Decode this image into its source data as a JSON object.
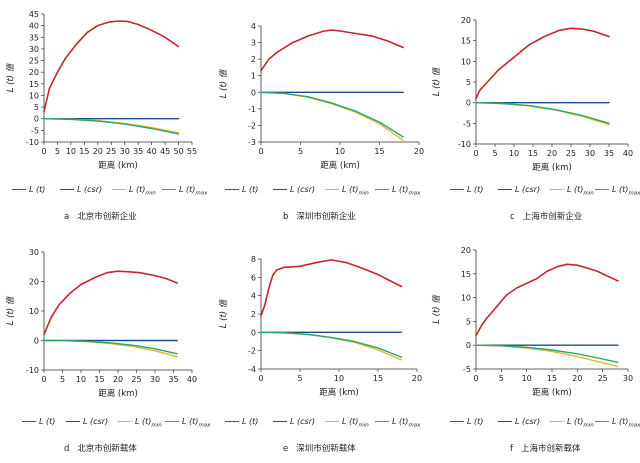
{
  "series_styles": {
    "lt": {
      "color": "#c0282d",
      "label_main": "L (t)",
      "label_sub": ""
    },
    "csr": {
      "color": "#1f4e8c",
      "label_main": "L (csr)",
      "label_sub": ""
    },
    "lmin": {
      "color": "#e8b530",
      "label_main": "L (t)",
      "label_sub": "min"
    },
    "lmax": {
      "color": "#28a86b",
      "label_main": "L (t)",
      "label_sub": "max"
    }
  },
  "chart_data": [
    {
      "type": "line",
      "letter": "a",
      "title": "北京市创新企业",
      "xlabel": "距离  (km)",
      "ylabel": "L (t)  值",
      "xlim": [
        0,
        55
      ],
      "ylim": [
        -10,
        45
      ],
      "xticks": [
        0,
        5,
        10,
        15,
        20,
        25,
        30,
        35,
        40,
        45,
        50,
        55
      ],
      "yticks": [
        -10,
        -5,
        0,
        5,
        10,
        15,
        20,
        25,
        30,
        35,
        40,
        45
      ],
      "series": [
        {
          "key": "lt",
          "x": [
            0,
            2,
            5,
            8,
            12,
            16,
            20,
            24,
            28,
            31,
            35,
            40,
            45,
            50
          ],
          "values": [
            3,
            13,
            20,
            26,
            32,
            37,
            40,
            41.5,
            42,
            41.8,
            40.5,
            38,
            35,
            31
          ]
        },
        {
          "key": "csr",
          "x": [
            0,
            50
          ],
          "values": [
            0,
            0
          ]
        },
        {
          "key": "lmin",
          "x": [
            0,
            10,
            20,
            30,
            40,
            50
          ],
          "values": [
            0,
            -0.2,
            -0.8,
            -2,
            -3.8,
            -6
          ]
        },
        {
          "key": "lmax",
          "x": [
            0,
            10,
            20,
            30,
            40,
            50
          ],
          "values": [
            0,
            -0.3,
            -1,
            -2.3,
            -4.2,
            -6.5
          ]
        }
      ]
    },
    {
      "type": "line",
      "letter": "b",
      "title": "深圳市创新企业",
      "xlabel": "距离  (km)",
      "ylabel": "L (t)  值",
      "xlim": [
        0,
        20
      ],
      "ylim": [
        -3,
        4
      ],
      "xticks": [
        0,
        5,
        10,
        15,
        20
      ],
      "yticks": [
        -3,
        -2,
        -1,
        0,
        1,
        2,
        3,
        4
      ],
      "series": [
        {
          "key": "lt",
          "x": [
            0,
            1,
            2,
            4,
            6,
            8,
            9,
            10,
            12,
            14,
            16,
            18
          ],
          "values": [
            1.3,
            2.0,
            2.4,
            3.0,
            3.4,
            3.7,
            3.75,
            3.7,
            3.55,
            3.4,
            3.1,
            2.7
          ]
        },
        {
          "key": "csr",
          "x": [
            0,
            18
          ],
          "values": [
            0,
            0
          ]
        },
        {
          "key": "lmin",
          "x": [
            0,
            3,
            6,
            9,
            12,
            15,
            18
          ],
          "values": [
            0,
            -0.08,
            -0.3,
            -0.7,
            -1.2,
            -1.9,
            -2.9
          ]
        },
        {
          "key": "lmax",
          "x": [
            0,
            3,
            6,
            9,
            12,
            15,
            18
          ],
          "values": [
            0,
            -0.07,
            -0.27,
            -0.65,
            -1.15,
            -1.8,
            -2.7
          ]
        }
      ]
    },
    {
      "type": "line",
      "letter": "c",
      "title": "上海市创新企业",
      "xlabel": "距离  (km)",
      "ylabel": "L (t)  值",
      "xlim": [
        0,
        40
      ],
      "ylim": [
        -10,
        20
      ],
      "xticks": [
        0,
        5,
        10,
        15,
        20,
        25,
        30,
        35,
        40
      ],
      "yticks": [
        -10,
        -5,
        0,
        5,
        10,
        15,
        20
      ],
      "series": [
        {
          "key": "lt",
          "x": [
            0,
            1,
            3,
            6,
            10,
            14,
            18,
            22,
            25,
            28,
            31,
            35
          ],
          "values": [
            1,
            3,
            5,
            8,
            11,
            14,
            16,
            17.5,
            18,
            17.8,
            17.3,
            16
          ]
        },
        {
          "key": "csr",
          "x": [
            0,
            35
          ],
          "values": [
            0,
            0
          ]
        },
        {
          "key": "lmin",
          "x": [
            0,
            7,
            14,
            21,
            28,
            35
          ],
          "values": [
            0,
            -0.2,
            -0.8,
            -1.8,
            -3.3,
            -5.3
          ]
        },
        {
          "key": "lmax",
          "x": [
            0,
            7,
            14,
            21,
            28,
            35
          ],
          "values": [
            0,
            -0.2,
            -0.7,
            -1.7,
            -3.1,
            -5
          ]
        }
      ]
    },
    {
      "type": "line",
      "letter": "d",
      "title": "北京市创新载体",
      "xlabel": "距离  (km)",
      "ylabel": "L (t)  值",
      "xlim": [
        0,
        40
      ],
      "ylim": [
        -10,
        30
      ],
      "xticks": [
        0,
        5,
        10,
        15,
        20,
        25,
        30,
        35,
        40
      ],
      "yticks": [
        -10,
        0,
        10,
        20,
        30
      ],
      "series": [
        {
          "key": "lt",
          "x": [
            0,
            2,
            4,
            7,
            10,
            14,
            17,
            20,
            23,
            26,
            30,
            33,
            36
          ],
          "values": [
            2,
            8,
            12,
            16,
            19,
            21.5,
            23,
            23.5,
            23.3,
            23,
            22,
            21,
            19.5
          ]
        },
        {
          "key": "csr",
          "x": [
            0,
            36
          ],
          "values": [
            0,
            0
          ]
        },
        {
          "key": "lmin",
          "x": [
            0,
            6,
            12,
            18,
            24,
            30,
            36
          ],
          "values": [
            0,
            -0.1,
            -0.4,
            -1,
            -2,
            -3.5,
            -5.5
          ]
        },
        {
          "key": "lmax",
          "x": [
            0,
            6,
            12,
            18,
            24,
            30,
            36
          ],
          "values": [
            0,
            -0.05,
            -0.3,
            -0.8,
            -1.6,
            -2.8,
            -4.5
          ]
        }
      ]
    },
    {
      "type": "line",
      "letter": "e",
      "title": "深圳市创新载体",
      "xlabel": "距离  (km)",
      "ylabel": "L (t)  值",
      "xlim": [
        0,
        20
      ],
      "ylim": [
        -4,
        8
      ],
      "xticks": [
        0,
        5,
        10,
        15,
        20
      ],
      "yticks": [
        -4,
        -2,
        0,
        2,
        4,
        6,
        8
      ],
      "series": [
        {
          "key": "lt",
          "x": [
            0,
            0.5,
            1,
            1.5,
            2,
            3,
            4,
            5,
            7,
            9,
            11,
            13,
            15,
            18
          ],
          "values": [
            1.8,
            3,
            4.8,
            6.2,
            6.8,
            7.1,
            7.15,
            7.2,
            7.6,
            7.9,
            7.6,
            7.0,
            6.3,
            5
          ]
        },
        {
          "key": "csr",
          "x": [
            0,
            18
          ],
          "values": [
            0,
            0
          ]
        },
        {
          "key": "lmin",
          "x": [
            0,
            3,
            6,
            9,
            12,
            15,
            18
          ],
          "values": [
            0,
            -0.06,
            -0.25,
            -0.6,
            -1.1,
            -1.9,
            -3
          ]
        },
        {
          "key": "lmax",
          "x": [
            0,
            3,
            6,
            9,
            12,
            15,
            18
          ],
          "values": [
            0,
            -0.05,
            -0.22,
            -0.55,
            -1.0,
            -1.7,
            -2.7
          ]
        }
      ]
    },
    {
      "type": "line",
      "letter": "f",
      "title": "上海市创新载体",
      "xlabel": "距离  (km)",
      "ylabel": "L (t)  值",
      "xlim": [
        0,
        30
      ],
      "ylim": [
        -5,
        20
      ],
      "xticks": [
        0,
        5,
        10,
        15,
        20,
        25,
        30
      ],
      "yticks": [
        -5,
        0,
        5,
        10,
        15,
        20
      ],
      "series": [
        {
          "key": "lt",
          "x": [
            0,
            1,
            2,
            4,
            6,
            8,
            10,
            12,
            14,
            16,
            18,
            20,
            22,
            24,
            26,
            28
          ],
          "values": [
            2,
            4,
            5.5,
            8,
            10.5,
            12,
            13,
            14,
            15.5,
            16.5,
            17,
            16.8,
            16.2,
            15.5,
            14.5,
            13.5
          ]
        },
        {
          "key": "csr",
          "x": [
            0,
            28
          ],
          "values": [
            0,
            0
          ]
        },
        {
          "key": "lmin",
          "x": [
            0,
            5,
            10,
            15,
            20,
            25,
            28
          ],
          "values": [
            0,
            -0.15,
            -0.6,
            -1.3,
            -2.4,
            -3.7,
            -4.5
          ]
        },
        {
          "key": "lmax",
          "x": [
            0,
            5,
            10,
            15,
            20,
            25,
            28
          ],
          "values": [
            0,
            -0.1,
            -0.45,
            -1.0,
            -1.8,
            -2.9,
            -3.6
          ]
        }
      ]
    }
  ]
}
